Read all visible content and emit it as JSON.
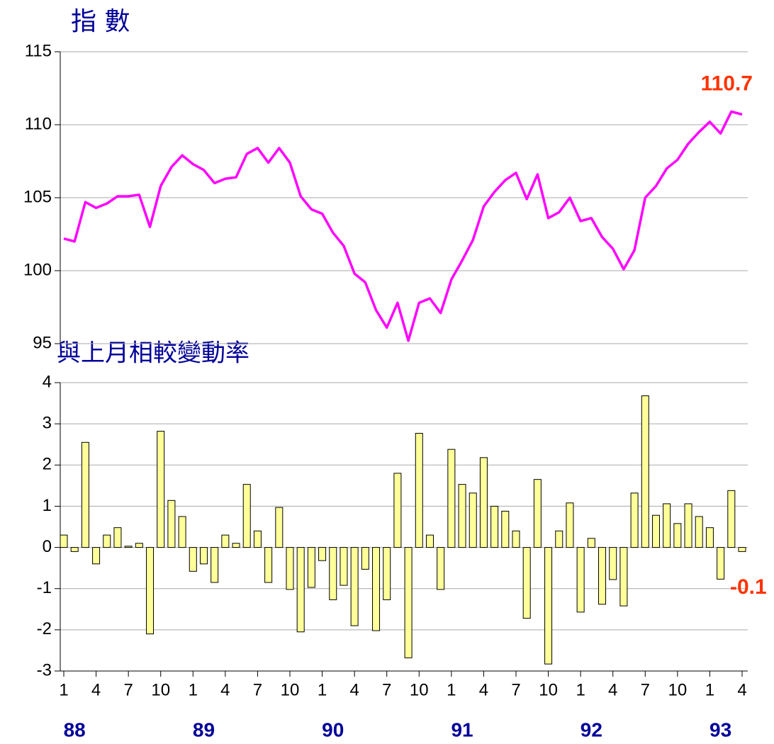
{
  "chart_data": [
    {
      "type": "line",
      "title": "指 數",
      "color": "#ff00ff",
      "grid": true,
      "ylim": [
        95,
        115
      ],
      "yticks": [
        95,
        100,
        105,
        110,
        115
      ],
      "annotation": "110.7",
      "values": [
        102.2,
        102.0,
        104.7,
        104.3,
        104.6,
        105.1,
        105.1,
        105.2,
        103.0,
        105.8,
        107.1,
        107.9,
        107.3,
        106.9,
        106.0,
        106.3,
        106.4,
        108.0,
        108.4,
        107.4,
        108.4,
        107.4,
        105.1,
        104.2,
        103.9,
        102.6,
        101.7,
        99.8,
        99.2,
        97.3,
        96.1,
        97.8,
        95.2,
        97.8,
        98.1,
        97.1,
        99.4,
        100.7,
        102.1,
        104.4,
        105.4,
        106.2,
        106.7,
        104.9,
        106.6,
        103.6,
        104.0,
        105.0,
        103.4,
        103.6,
        102.3,
        101.5,
        100.1,
        101.4,
        105.0,
        105.8,
        107.0,
        107.6,
        108.7,
        109.5,
        110.2,
        109.4,
        110.9,
        110.7
      ]
    },
    {
      "type": "bar",
      "title": "與上月相較變動率",
      "color": "#ffff99",
      "grid": true,
      "ylim": [
        -3,
        4
      ],
      "yticks": [
        -3,
        -2,
        -1,
        0,
        1,
        2,
        3,
        4
      ],
      "annotation": "-0.1",
      "categories": [
        "1",
        null,
        null,
        "4",
        null,
        null,
        "7",
        null,
        null,
        "10",
        null,
        null,
        "1",
        null,
        null,
        "4",
        null,
        null,
        "7",
        null,
        null,
        "10",
        null,
        null,
        "1",
        null,
        null,
        "4",
        null,
        null,
        "7",
        null,
        null,
        "10",
        null,
        null,
        "1",
        null,
        null,
        "4",
        null,
        null,
        "7",
        null,
        null,
        "10",
        null,
        null,
        "1",
        null,
        null,
        "4",
        null,
        null,
        "7",
        null,
        null,
        "10",
        null,
        null,
        "1",
        null,
        null,
        "4"
      ],
      "years": [
        "88",
        "89",
        "90",
        "91",
        "92",
        "93"
      ],
      "values": [
        0.3,
        -0.1,
        2.55,
        -0.4,
        0.3,
        0.48,
        0.03,
        0.1,
        -2.1,
        2.82,
        1.14,
        0.75,
        -0.58,
        -0.4,
        -0.85,
        0.3,
        0.1,
        1.53,
        0.4,
        -0.85,
        0.97,
        -1.02,
        -2.05,
        -0.97,
        -0.32,
        -1.27,
        -0.92,
        -1.9,
        -0.53,
        -2.02,
        -1.27,
        1.8,
        -2.68,
        2.77,
        0.3,
        -1.02,
        2.38,
        1.53,
        1.32,
        2.18,
        1.0,
        0.88,
        0.4,
        -1.72,
        1.65,
        -2.83,
        0.4,
        1.08,
        -1.57,
        0.22,
        -1.38,
        -0.78,
        -1.42,
        1.32,
        3.68,
        0.78,
        1.06,
        0.58,
        1.06,
        0.75,
        0.48,
        -0.77,
        1.38,
        -0.1
      ]
    }
  ]
}
